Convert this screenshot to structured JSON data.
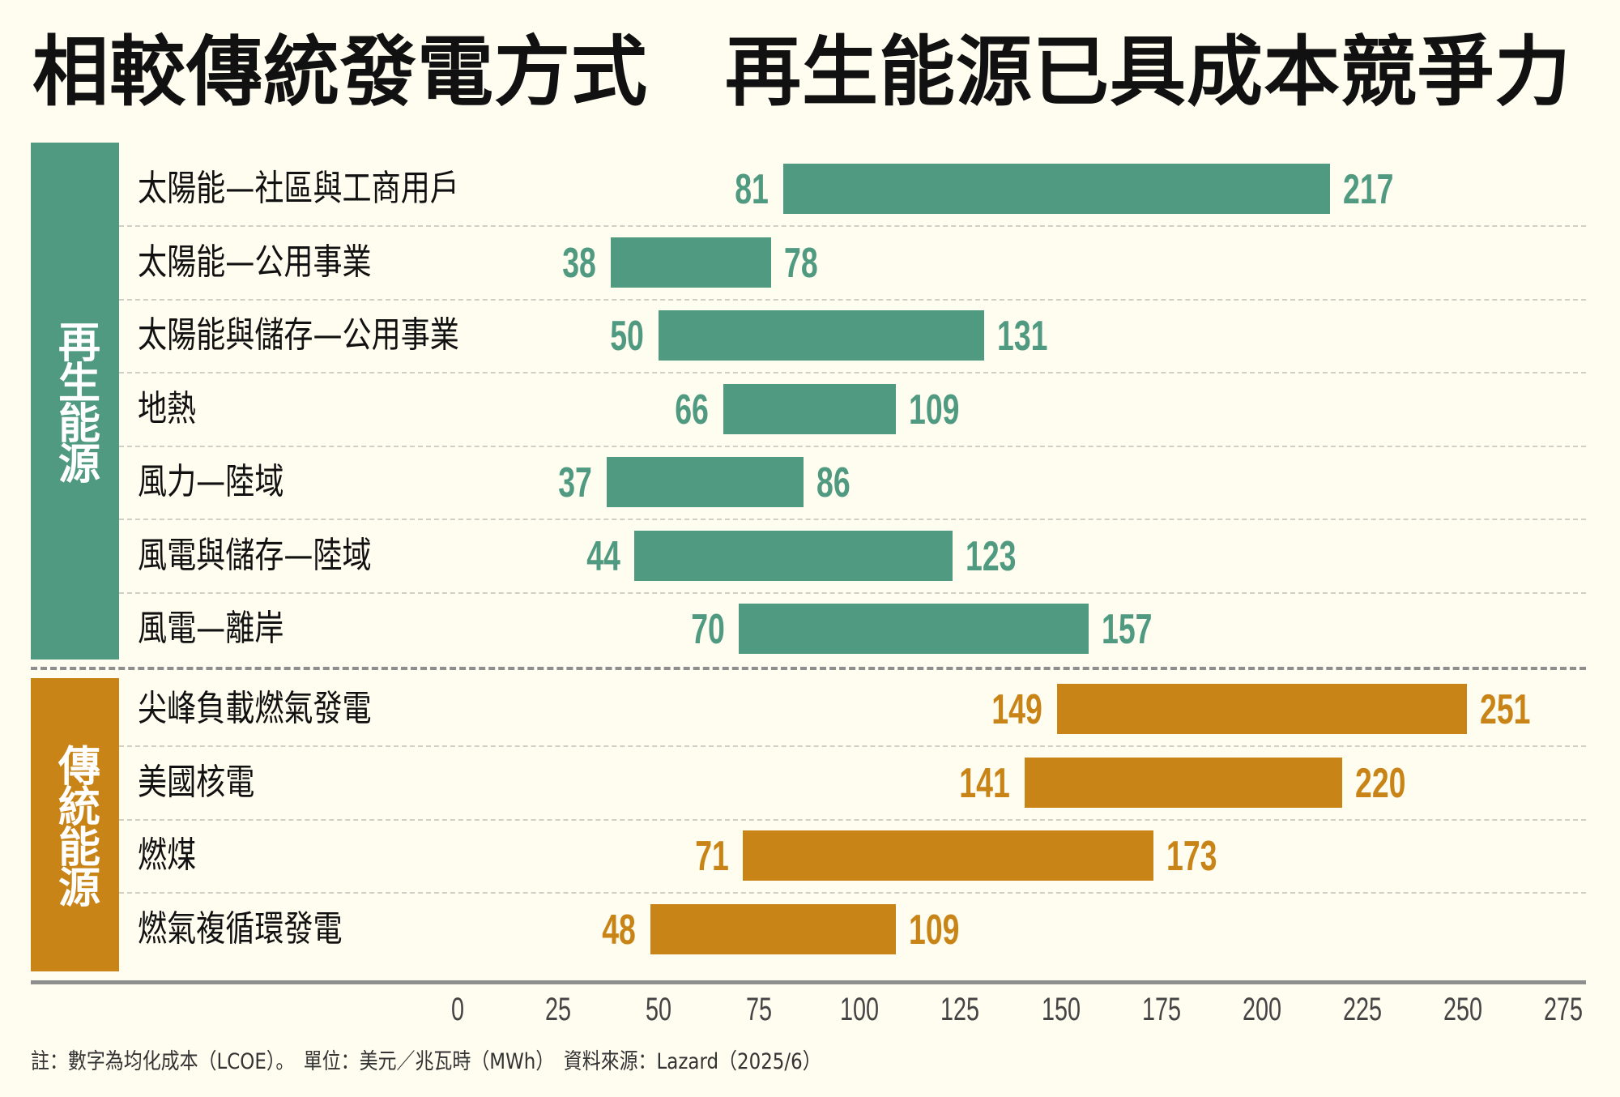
{
  "chart_data": {
    "type": "bar",
    "subtype": "floating-range-horizontal",
    "title": "相較傳統發電方式　再生能源已具成本競爭力",
    "xlim": [
      0,
      275
    ],
    "xticks": [
      "0",
      "25",
      "50",
      "75",
      "100",
      "125",
      "150",
      "175",
      "200",
      "225",
      "250",
      "275"
    ],
    "groups": [
      {
        "name": "再生能源",
        "color": "#4f9a80",
        "rows": [
          {
            "label": "太陽能—社區與工商用戶",
            "low": 81,
            "high": 217
          },
          {
            "label": "太陽能—公用事業",
            "low": 38,
            "high": 78
          },
          {
            "label": "太陽能與儲存—公用事業",
            "low": 50,
            "high": 131
          },
          {
            "label": "地熱",
            "low": 66,
            "high": 109
          },
          {
            "label": "風力—陸域",
            "low": 37,
            "high": 86
          },
          {
            "label": "風電與儲存—陸域",
            "low": 44,
            "high": 123
          },
          {
            "label": "風電—離岸",
            "low": 70,
            "high": 157
          }
        ]
      },
      {
        "name": "傳統能源",
        "color": "#c98417",
        "rows": [
          {
            "label": "尖峰負載燃氣發電",
            "low": 149,
            "high": 251
          },
          {
            "label": "美國核電",
            "low": 141,
            "high": 220
          },
          {
            "label": "燃煤",
            "low": 71,
            "high": 173
          },
          {
            "label": "燃氣複循環發電",
            "low": 48,
            "high": 109
          }
        ]
      }
    ],
    "footnote": "註：數字為均化成本（LCOE）。　單位：美元／兆瓦時（MWh）　資料來源：Lazard（2025/6）"
  }
}
